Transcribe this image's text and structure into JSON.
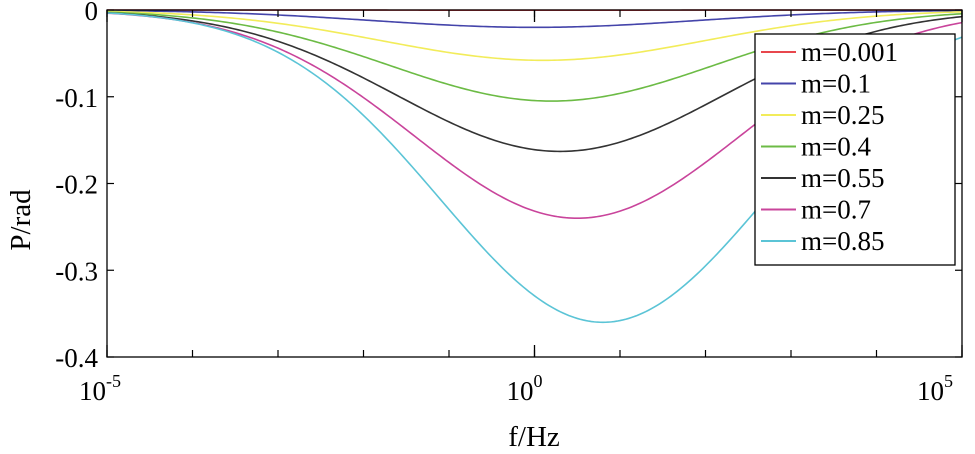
{
  "chart_data": {
    "type": "line",
    "title": "",
    "xlabel": "f/Hz",
    "ylabel": "P/rad",
    "xscale": "log",
    "xlim_exp": [
      -5,
      5
    ],
    "ylim": [
      -0.4,
      0
    ],
    "x_ticks": [
      {
        "base": "10",
        "exp": "-5",
        "value_exp": -5
      },
      {
        "base": "10",
        "exp": "0",
        "value_exp": 0
      },
      {
        "base": "10",
        "exp": "5",
        "value_exp": 5
      }
    ],
    "y_ticks": [
      {
        "label": "0",
        "value": 0
      },
      {
        "label": "-0.1",
        "value": -0.1
      },
      {
        "label": "-0.2",
        "value": -0.2
      },
      {
        "label": "-0.3",
        "value": -0.3
      },
      {
        "label": "-0.4",
        "value": -0.4
      }
    ],
    "grid": false,
    "legend_position": "top-right",
    "series": [
      {
        "name": "m=0.001",
        "color": "#e8474d",
        "min_value": -0.0002,
        "min_at_log10_f": 0.0,
        "width_decades": 1.9
      },
      {
        "name": "m=0.1",
        "color": "#4444aa",
        "min_value": -0.02,
        "min_at_log10_f": 0.0,
        "width_decades": 1.9
      },
      {
        "name": "m=0.25",
        "color": "#f2ec5a",
        "min_value": -0.058,
        "min_at_log10_f": 0.1,
        "width_decades": 1.9
      },
      {
        "name": "m=0.4",
        "color": "#6cbb45",
        "min_value": -0.105,
        "min_at_log10_f": 0.2,
        "width_decades": 1.9
      },
      {
        "name": "m=0.55",
        "color": "#333333",
        "min_value": -0.163,
        "min_at_log10_f": 0.3,
        "width_decades": 1.9
      },
      {
        "name": "m=0.7",
        "color": "#c9449b",
        "min_value": -0.24,
        "min_at_log10_f": 0.5,
        "width_decades": 1.9
      },
      {
        "name": "m=0.85",
        "color": "#5bc4d6",
        "min_value": -0.36,
        "min_at_log10_f": 0.8,
        "width_decades": 1.9
      }
    ]
  }
}
